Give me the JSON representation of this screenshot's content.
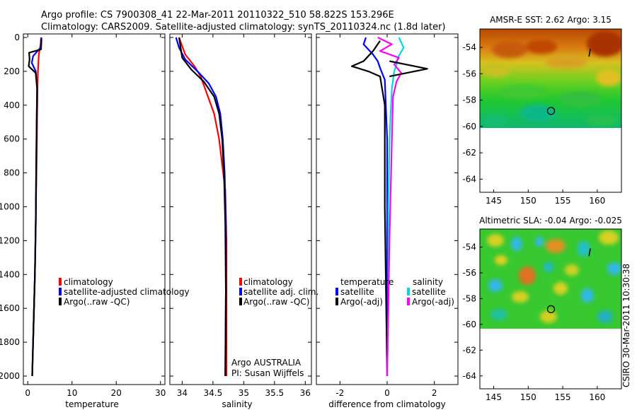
{
  "header": {
    "line1": "Argo profile: CS 7900308_41 22-Mar-2011 20110322_510 58.822S 153.296E",
    "line2": "Climatology: CARS2009. Satellite-adjusted climatology: synTS_20110324.nc (1.8d later)"
  },
  "stamp": "CSIRO 30-Mar-2011 10:30:38",
  "chart_data": [
    {
      "type": "line",
      "id": "temperature",
      "xlabel": "temperature",
      "ylabel": "",
      "xlim": [
        -1,
        31
      ],
      "ylim": [
        2050,
        0
      ],
      "xticks": [
        0,
        10,
        20,
        30
      ],
      "yticks": [
        0,
        200,
        400,
        600,
        800,
        1000,
        1200,
        1400,
        1600,
        1800,
        2000
      ],
      "legend": [
        "climatology",
        "satellite-adjusted climatology",
        "Argo(..raw -QC)"
      ],
      "series": [
        {
          "name": "climatology",
          "color": "#ff0000",
          "x": [
            3.0,
            2.9,
            2.5,
            2.3,
            2.2,
            2.1,
            2.0,
            1.9,
            1.8,
            1.6,
            1.3,
            1.0
          ],
          "y": [
            0,
            40,
            100,
            200,
            300,
            500,
            700,
            900,
            1100,
            1400,
            1700,
            2000
          ]
        },
        {
          "name": "satellite-adjusted climatology",
          "color": "#0000ff",
          "x": [
            3.1,
            2.9,
            1.2,
            0.9,
            1.8,
            2.1,
            2.0,
            1.9,
            1.8,
            1.6,
            1.3,
            1.0
          ],
          "y": [
            0,
            60,
            110,
            150,
            200,
            300,
            500,
            800,
            1100,
            1400,
            1700,
            2000
          ]
        },
        {
          "name": "Argo(..raw -QC)",
          "color": "#000000",
          "x": [
            3.1,
            3.0,
            0.3,
            0.4,
            0.2,
            1.8,
            2.1,
            2.0,
            1.9,
            1.8,
            1.6,
            1.3,
            1.0
          ],
          "y": [
            10,
            70,
            90,
            130,
            170,
            210,
            300,
            500,
            800,
            1100,
            1400,
            1700,
            2000
          ]
        }
      ]
    },
    {
      "type": "line",
      "id": "salinity",
      "xlabel": "salinity",
      "ylabel": "",
      "xlim": [
        33.8,
        36.1
      ],
      "ylim": [
        2050,
        0
      ],
      "xticks": [
        34,
        34.5,
        35,
        35.5,
        36
      ],
      "legend": [
        "climatology",
        "satellite adj. clim.",
        "Argo(..raw -QC)"
      ],
      "note1": "Argo AUSTRALIA",
      "note2": "PI: Susan Wijffels",
      "series": [
        {
          "name": "climatology",
          "color": "#ff0000",
          "x": [
            33.95,
            34.05,
            34.2,
            34.3,
            34.42,
            34.52,
            34.6,
            34.65,
            34.7,
            34.72,
            34.72,
            34.72
          ],
          "y": [
            0,
            100,
            170,
            230,
            350,
            450,
            600,
            750,
            900,
            1200,
            1600,
            2000
          ]
        },
        {
          "name": "satellite adj. clim.",
          "color": "#0000ff",
          "x": [
            33.9,
            33.95,
            34.05,
            34.25,
            34.43,
            34.55,
            34.62,
            34.66,
            34.69,
            34.71,
            34.71,
            34.7
          ],
          "y": [
            0,
            60,
            130,
            200,
            270,
            350,
            450,
            600,
            800,
            1100,
            1500,
            2000
          ]
        },
        {
          "name": "Argo(..raw -QC)",
          "color": "#000000",
          "x": [
            33.95,
            34.0,
            34.15,
            34.35,
            34.52,
            34.6,
            34.65,
            34.68,
            34.7,
            34.71,
            34.7
          ],
          "y": [
            0,
            120,
            190,
            260,
            350,
            450,
            600,
            800,
            1100,
            1500,
            2000
          ]
        }
      ]
    },
    {
      "type": "line",
      "id": "difference",
      "xlabel": "difference from climatology",
      "ylabel": "",
      "xlim": [
        -3,
        3
      ],
      "ylim": [
        2050,
        0
      ],
      "xticks": [
        -2,
        0,
        2
      ],
      "legend_temperature_title": "temperature",
      "legend_salinity_title": "salinity",
      "legend": [
        "satellite",
        "Argo(-adj)",
        "satellite",
        "Argo(-adj)"
      ],
      "series": [
        {
          "name": "temperature satellite",
          "color": "#0000ff",
          "x": [
            -0.9,
            -1.0,
            -0.6,
            -0.4,
            -0.3,
            -0.1,
            0.0,
            0.0,
            0.0
          ],
          "y": [
            0,
            40,
            100,
            140,
            180,
            250,
            600,
            1200,
            2000
          ]
        },
        {
          "name": "temperature Argo(-adj)",
          "color": "#000000",
          "x": [
            -0.3,
            -0.6,
            -1.0,
            -1.5,
            -0.8,
            -0.3,
            -0.1,
            -0.1,
            0.0
          ],
          "y": [
            20,
            80,
            140,
            170,
            200,
            230,
            400,
            1000,
            2000
          ]
        },
        {
          "name": "salinity satellite",
          "color": "#00d8d8",
          "x": [
            0.5,
            0.7,
            0.45,
            0.4,
            0.3,
            0.2,
            0.1,
            0.05,
            0.05,
            0.0
          ],
          "y": [
            0,
            60,
            120,
            160,
            200,
            300,
            600,
            1000,
            1600,
            2000
          ]
        },
        {
          "name": "salinity Argo(-adj)",
          "color": "#ff00ff",
          "x": [
            -0.4,
            0.2,
            -0.3,
            0.5,
            0.3,
            0.6,
            0.4,
            0.25,
            0.2,
            0.1,
            0.0
          ],
          "y": [
            0,
            40,
            80,
            120,
            160,
            210,
            260,
            350,
            600,
            1200,
            2000
          ]
        },
        {
          "name": "spike",
          "color": "#000000",
          "x": [
            0.1,
            1.7,
            0.1
          ],
          "y": [
            140,
            185,
            230
          ]
        }
      ]
    },
    {
      "type": "heatmap",
      "id": "sst",
      "title": "AMSR-E SST: 2.62 Argo: 3.15",
      "xlim": [
        143,
        163.5
      ],
      "ylim": [
        -65,
        -52.6
      ],
      "xticks": [
        145,
        150,
        155,
        160
      ],
      "yticks": [
        -54,
        -56,
        -58,
        -60,
        -62,
        -64
      ],
      "data_extent_lat": [
        -60,
        -52.6
      ],
      "marker_lon": 153.3,
      "marker_lat": -58.82
    },
    {
      "type": "heatmap",
      "id": "sla",
      "title": "Altimetric SLA: -0.04 Argo: -0.025",
      "xlim": [
        143,
        163.5
      ],
      "ylim": [
        -65,
        -52.6
      ],
      "xticks": [
        145,
        150,
        155,
        160
      ],
      "yticks": [
        -54,
        -56,
        -58,
        -60,
        -62,
        -64
      ],
      "data_extent_lat": [
        -60,
        -52.6
      ],
      "marker_lon": 153.3,
      "marker_lat": -58.82
    }
  ]
}
